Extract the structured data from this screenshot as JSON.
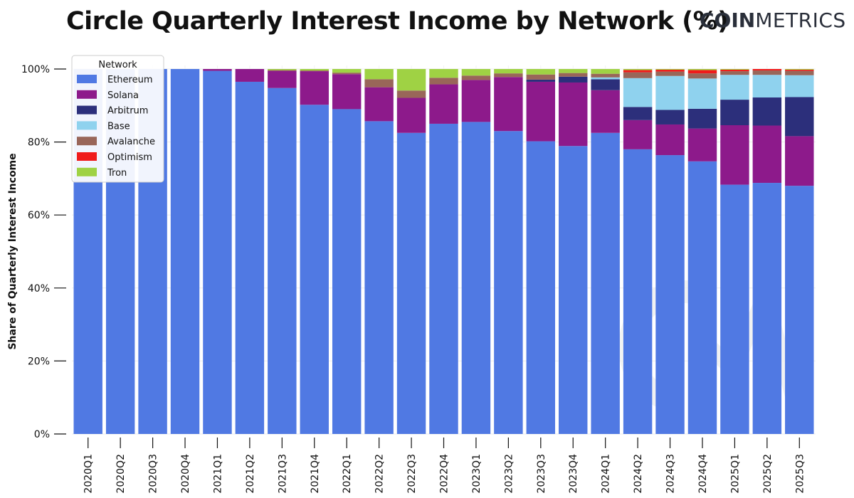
{
  "title": "Circle Quarterly Interest Income by Network (%)",
  "brand": {
    "bold": "COIN",
    "light": "METRICS"
  },
  "chart_data": {
    "type": "bar",
    "stacked": true,
    "ylabel": "Share of Quarterly Interest Income",
    "xlabel": "",
    "ylim": [
      0,
      100
    ],
    "yticks": [
      "0%",
      "20%",
      "40%",
      "60%",
      "80%",
      "100%"
    ],
    "grid": true,
    "legend": {
      "title": "Network",
      "position": "top-left"
    },
    "categories": [
      "2020Q1",
      "2020Q2",
      "2020Q3",
      "2020Q4",
      "2021Q1",
      "2021Q2",
      "2021Q3",
      "2021Q4",
      "2022Q1",
      "2022Q2",
      "2022Q3",
      "2022Q4",
      "2023Q1",
      "2023Q2",
      "2023Q3",
      "2023Q4",
      "2024Q1",
      "2024Q2",
      "2024Q3",
      "2024Q4",
      "2025Q1",
      "2025Q2",
      "2025Q3"
    ],
    "series": [
      {
        "name": "Ethereum",
        "color": "#5079e3",
        "values": [
          100,
          100,
          100,
          100,
          99.5,
          96.5,
          94.8,
          90.2,
          89.0,
          85.7,
          82.5,
          85.0,
          85.5,
          83.0,
          80.2,
          78.9,
          82.5,
          78.0,
          76.4,
          74.7,
          68.3,
          68.8,
          68.0
        ]
      },
      {
        "name": "Solana",
        "color": "#8d1a8b",
        "values": [
          0,
          0,
          0,
          0,
          0.5,
          3.5,
          4.7,
          9.2,
          9.6,
          9.3,
          9.6,
          10.8,
          11.5,
          14.8,
          16.3,
          17.4,
          11.7,
          8.0,
          8.4,
          9.0,
          16.3,
          15.7,
          13.6
        ]
      },
      {
        "name": "Arbitrum",
        "color": "#2c2f7b",
        "values": [
          0,
          0,
          0,
          0,
          0,
          0,
          0,
          0,
          0,
          0,
          0,
          0,
          0,
          0,
          0.6,
          1.6,
          3.0,
          3.6,
          4.0,
          5.4,
          7.0,
          7.7,
          10.7
        ]
      },
      {
        "name": "Base",
        "color": "#8fd2ee",
        "values": [
          0,
          0,
          0,
          0,
          0,
          0,
          0,
          0,
          0,
          0,
          0,
          0,
          0,
          0,
          0,
          0,
          0.5,
          7.9,
          9.3,
          8.3,
          6.8,
          6.2,
          6.0
        ]
      },
      {
        "name": "Avalanche",
        "color": "#996659",
        "values": [
          0,
          0,
          0,
          0,
          0,
          0,
          0.2,
          0.2,
          0.4,
          2.2,
          2.0,
          1.8,
          1.2,
          1.0,
          1.4,
          1.0,
          1.0,
          1.6,
          1.2,
          1.4,
          1.0,
          1.2,
          1.2
        ]
      },
      {
        "name": "Optimism",
        "color": "#f01b1b",
        "values": [
          0,
          0,
          0,
          0,
          0,
          0,
          0,
          0,
          0,
          0,
          0,
          0,
          0,
          0,
          0,
          0,
          0,
          0.6,
          0.5,
          0.9,
          0.4,
          0.4,
          0.3
        ]
      },
      {
        "name": "Tron",
        "color": "#9fd244",
        "values": [
          0,
          0,
          0,
          0,
          0,
          0,
          0.3,
          0.4,
          1.0,
          2.8,
          5.9,
          2.4,
          1.8,
          1.2,
          1.5,
          1.1,
          1.3,
          0.3,
          0.2,
          0.3,
          0.2,
          0,
          0.2
        ]
      }
    ]
  }
}
